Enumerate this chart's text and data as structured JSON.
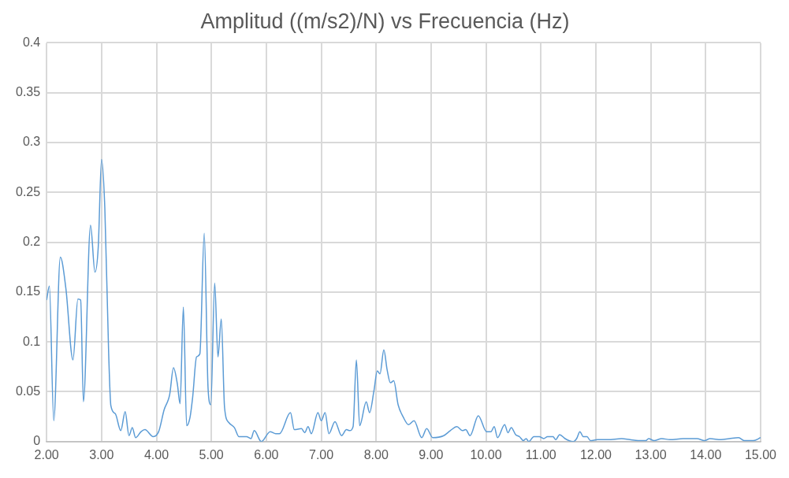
{
  "chart_data": {
    "type": "line",
    "title": "Amplitud ((m/s2)/N) vs Frecuencia (Hz)",
    "x": [
      2.0,
      2.05,
      2.13,
      2.25,
      2.35,
      2.48,
      2.57,
      2.62,
      2.67,
      2.8,
      2.88,
      2.94,
      3.0,
      3.06,
      3.13,
      3.17,
      3.25,
      3.35,
      3.43,
      3.5,
      3.56,
      3.62,
      3.72,
      3.79,
      3.94,
      4.04,
      4.14,
      4.24,
      4.31,
      4.38,
      4.43,
      4.49,
      4.55,
      4.61,
      4.66,
      4.73,
      4.79,
      4.87,
      4.94,
      4.99,
      5.06,
      5.12,
      5.18,
      5.24,
      5.32,
      5.42,
      5.5,
      5.64,
      5.72,
      5.78,
      5.91,
      6.07,
      6.17,
      6.24,
      6.44,
      6.51,
      6.64,
      6.7,
      6.76,
      6.82,
      6.94,
      7.0,
      7.07,
      7.14,
      7.25,
      7.37,
      7.46,
      7.52,
      7.58,
      7.64,
      7.7,
      7.82,
      7.88,
      7.96,
      8.02,
      8.07,
      8.14,
      8.2,
      8.26,
      8.32,
      8.4,
      8.49,
      8.59,
      8.69,
      8.83,
      8.92,
      9.03,
      9.23,
      9.35,
      9.47,
      9.57,
      9.63,
      9.71,
      9.86,
      10.01,
      10.09,
      10.15,
      10.21,
      10.34,
      10.4,
      10.46,
      10.54,
      10.61,
      10.68,
      10.73,
      10.78,
      10.87,
      10.97,
      11.05,
      11.12,
      11.22,
      11.27,
      11.34,
      11.44,
      11.51,
      11.59,
      11.65,
      11.71,
      11.77,
      11.84,
      11.9,
      12.03,
      12.22,
      12.47,
      12.62,
      12.77,
      12.91,
      12.96,
      13.06,
      13.2,
      13.35,
      13.59,
      13.84,
      13.98,
      14.08,
      14.28,
      14.43,
      14.6,
      14.7,
      14.87,
      15.0
    ],
    "series": [
      {
        "color": "#5b9bd5",
        "values": [
          0.142,
          0.156,
          0.021,
          0.185,
          0.154,
          0.082,
          0.143,
          0.142,
          0.04,
          0.217,
          0.17,
          0.195,
          0.283,
          0.234,
          0.088,
          0.036,
          0.028,
          0.011,
          0.03,
          0.006,
          0.014,
          0.004,
          0.01,
          0.012,
          0.005,
          0.01,
          0.032,
          0.047,
          0.074,
          0.058,
          0.038,
          0.135,
          0.016,
          0.024,
          0.045,
          0.085,
          0.088,
          0.209,
          0.053,
          0.037,
          0.159,
          0.085,
          0.123,
          0.034,
          0.019,
          0.014,
          0.005,
          0.005,
          0.003,
          0.011,
          0.0,
          0.01,
          0.008,
          0.008,
          0.029,
          0.012,
          0.013,
          0.009,
          0.015,
          0.008,
          0.029,
          0.021,
          0.029,
          0.008,
          0.02,
          0.006,
          0.012,
          0.011,
          0.015,
          0.082,
          0.016,
          0.04,
          0.029,
          0.051,
          0.071,
          0.068,
          0.092,
          0.072,
          0.059,
          0.061,
          0.037,
          0.025,
          0.017,
          0.021,
          0.004,
          0.013,
          0.004,
          0.006,
          0.011,
          0.015,
          0.011,
          0.012,
          0.006,
          0.026,
          0.01,
          0.01,
          0.015,
          0.004,
          0.017,
          0.009,
          0.014,
          0.007,
          0.005,
          0.001,
          0.003,
          0.0,
          0.005,
          0.005,
          0.003,
          0.005,
          0.005,
          0.002,
          0.007,
          0.003,
          0.001,
          0.0,
          0.003,
          0.01,
          0.005,
          0.005,
          0.001,
          0.002,
          0.002,
          0.003,
          0.002,
          0.001,
          0.001,
          0.003,
          0.001,
          0.003,
          0.002,
          0.003,
          0.003,
          0.001,
          0.003,
          0.002,
          0.003,
          0.004,
          0.001,
          0.001,
          0.004
        ]
      }
    ],
    "xlim": [
      2,
      15
    ],
    "xticks": [
      {
        "value": 2,
        "label": "2.00"
      },
      {
        "value": 3,
        "label": "3.00"
      },
      {
        "value": 4,
        "label": "4.00"
      },
      {
        "value": 5,
        "label": "5.00"
      },
      {
        "value": 6,
        "label": "6.00"
      },
      {
        "value": 7,
        "label": "7.00"
      },
      {
        "value": 8,
        "label": "8.00"
      },
      {
        "value": 9,
        "label": "9.00"
      },
      {
        "value": 10,
        "label": "10.00"
      },
      {
        "value": 11,
        "label": "11.00"
      },
      {
        "value": 12,
        "label": "12.00"
      },
      {
        "value": 13,
        "label": "13.00"
      },
      {
        "value": 14,
        "label": "14.00"
      },
      {
        "value": 15,
        "label": "15.00"
      }
    ],
    "ylim": [
      0,
      0.4
    ],
    "yticks": [
      0,
      0.05,
      0.1,
      0.15,
      0.2,
      0.25,
      0.3,
      0.35,
      0.4
    ],
    "grid": true,
    "legend": false,
    "marker": "none",
    "line_style": "solid"
  }
}
